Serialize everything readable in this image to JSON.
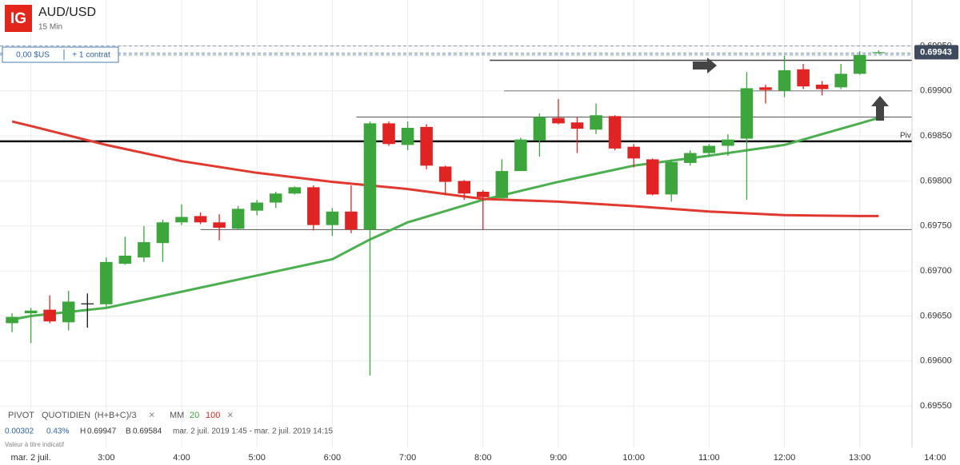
{
  "header": {
    "logo": "IG",
    "symbol": "AUD/USD",
    "interval": "15 Min"
  },
  "position": {
    "pnl": "0,00 $US",
    "size": "+ 1 contrat"
  },
  "legend": {
    "pivot": "PIVOT",
    "pivot_period": "QUOTIDIEN",
    "pivot_formula": "(H+B+C)/3",
    "close": "×",
    "ma": "MM",
    "ma_fast": "20",
    "ma_slow": "100",
    "ma_close": "×"
  },
  "stats": {
    "change": "0.00302",
    "change_pct": "0.43%",
    "high_label": "H",
    "high": "0.69947",
    "low_label": "B",
    "low": "0.69584",
    "range": "mar. 2 juil. 2019 1:45 - mar. 2 juil. 2019 14:15",
    "note": "Valeur à titre indicatif"
  },
  "chart_data": {
    "type": "candlestick",
    "xlim": [
      1.59,
      14.33
    ],
    "xticks": [
      {
        "value": 2,
        "label": "mar. 2 juil."
      },
      {
        "value": 3,
        "label": "3:00"
      },
      {
        "value": 4,
        "label": "4:00"
      },
      {
        "value": 5,
        "label": "5:00"
      },
      {
        "value": 6,
        "label": "6:00"
      },
      {
        "value": 7,
        "label": "7:00"
      },
      {
        "value": 8,
        "label": "8:00"
      },
      {
        "value": 9,
        "label": "9:00"
      },
      {
        "value": 10,
        "label": "10:00"
      },
      {
        "value": 11,
        "label": "11:00"
      },
      {
        "value": 12,
        "label": "12:00"
      },
      {
        "value": 13,
        "label": "13:00"
      },
      {
        "value": 14,
        "label": "14:00"
      }
    ],
    "ylim": [
      0.69504,
      0.70001
    ],
    "yticks": [
      {
        "value": 0.6955,
        "label": "0.69550"
      },
      {
        "value": 0.696,
        "label": "0.69600"
      },
      {
        "value": 0.6965,
        "label": "0.69650"
      },
      {
        "value": 0.697,
        "label": "0.69700"
      },
      {
        "value": 0.6975,
        "label": "0.69750"
      },
      {
        "value": 0.698,
        "label": "0.69800"
      },
      {
        "value": 0.6985,
        "label": "0.69850"
      },
      {
        "value": 0.699,
        "label": "0.69900"
      },
      {
        "value": 0.6995,
        "label": "0.69950"
      }
    ],
    "grid": true,
    "colors": {
      "up": "#3ca63c",
      "down": "#e02424",
      "flat": "#111111"
    },
    "x": [
      1.75,
      2,
      2.25,
      2.5,
      2.75,
      3,
      3.25,
      3.5,
      3.75,
      4,
      4.25,
      4.5,
      4.75,
      5,
      5.25,
      5.5,
      5.75,
      6,
      6.25,
      6.5,
      6.75,
      7,
      7.25,
      7.5,
      7.75,
      8,
      8.25,
      8.5,
      8.75,
      9,
      9.25,
      9.5,
      9.75,
      10,
      10.25,
      10.5,
      10.75,
      11,
      11.25,
      11.5,
      11.75,
      12,
      12.25,
      12.5,
      12.75,
      13,
      13.25
    ],
    "open": [
      0.69642,
      0.69653,
      0.69657,
      0.69643,
      0.69664,
      0.69663,
      0.69708,
      0.69715,
      0.69731,
      0.69754,
      0.69761,
      0.69754,
      0.69747,
      0.69767,
      0.69776,
      0.69786,
      0.69793,
      0.69751,
      0.69766,
      0.69746,
      0.69864,
      0.6984,
      0.6986,
      0.69816,
      0.698,
      0.69788,
      0.69781,
      0.69811,
      0.69845,
      0.6987,
      0.69865,
      0.69857,
      0.69872,
      0.69838,
      0.69824,
      0.69785,
      0.6982,
      0.69831,
      0.69839,
      0.69847,
      0.69904,
      0.699,
      0.69924,
      0.69907,
      0.69904,
      0.69919,
      0.69942
    ],
    "high": [
      0.69653,
      0.69659,
      0.69673,
      0.69678,
      0.69675,
      0.69715,
      0.69738,
      0.6975,
      0.69757,
      0.69774,
      0.69765,
      0.69763,
      0.69772,
      0.69779,
      0.69788,
      0.69794,
      0.69795,
      0.6977,
      0.69795,
      0.69866,
      0.69866,
      0.69866,
      0.69863,
      0.69817,
      0.69801,
      0.6979,
      0.69824,
      0.69848,
      0.69875,
      0.69891,
      0.69871,
      0.69886,
      0.69873,
      0.69841,
      0.69825,
      0.69824,
      0.69834,
      0.69841,
      0.69852,
      0.69921,
      0.69907,
      0.69939,
      0.6993,
      0.69911,
      0.6993,
      0.69944,
      0.69945
    ],
    "low": [
      0.69632,
      0.6962,
      0.69642,
      0.69634,
      0.69637,
      0.6966,
      0.69707,
      0.6971,
      0.6971,
      0.69751,
      0.69752,
      0.69734,
      0.69746,
      0.69762,
      0.6977,
      0.69785,
      0.69745,
      0.69739,
      0.69742,
      0.69584,
      0.69839,
      0.69834,
      0.69813,
      0.69784,
      0.69779,
      0.69746,
      0.69779,
      0.69811,
      0.69827,
      0.69863,
      0.69831,
      0.69852,
      0.69834,
      0.69815,
      0.69784,
      0.69777,
      0.69817,
      0.69827,
      0.69828,
      0.69779,
      0.69886,
      0.69893,
      0.69902,
      0.69895,
      0.69902,
      0.69918,
      0.69941
    ],
    "close": [
      0.69649,
      0.69656,
      0.69644,
      0.69666,
      0.69664,
      0.6971,
      0.69717,
      0.69732,
      0.69754,
      0.6976,
      0.69754,
      0.69748,
      0.69769,
      0.69776,
      0.69786,
      0.69793,
      0.69751,
      0.69766,
      0.69746,
      0.69864,
      0.69841,
      0.69859,
      0.69817,
      0.69799,
      0.69786,
      0.69782,
      0.69811,
      0.69846,
      0.69871,
      0.69864,
      0.69858,
      0.69873,
      0.69836,
      0.69825,
      0.69785,
      0.69821,
      0.69831,
      0.69839,
      0.69846,
      0.69903,
      0.69901,
      0.69923,
      0.69905,
      0.69902,
      0.69919,
      0.6994,
      0.69943
    ],
    "ma": [
      {
        "color": "#4caf50",
        "x": [
          1.75,
          2,
          3,
          4,
          5,
          6,
          6.5,
          7,
          8,
          9,
          10,
          11,
          12,
          13,
          13.25
        ],
        "values": [
          0.69646,
          0.6965,
          0.69659,
          0.69677,
          0.69695,
          0.69713,
          0.69735,
          0.69754,
          0.69779,
          0.69799,
          0.69817,
          0.69828,
          0.6984,
          0.69864,
          0.6987
        ]
      },
      {
        "color": "#e03a30",
        "x": [
          1.75,
          2,
          3,
          4,
          5,
          6,
          7,
          8,
          9,
          10,
          11,
          12,
          13,
          13.25
        ],
        "values": [
          0.69866,
          0.69861,
          0.6984,
          0.69822,
          0.69809,
          0.69799,
          0.69791,
          0.6978,
          0.69777,
          0.69772,
          0.69766,
          0.69762,
          0.69761,
          0.69761
        ]
      }
    ],
    "levels": [
      {
        "value": 0.69844,
        "start": 1.59,
        "color": "#111111",
        "width": 2.5,
        "dash": false,
        "label": "Piv"
      },
      {
        "value": 0.69746,
        "start": 4.25,
        "color": "#555555",
        "width": 1,
        "dash": false
      },
      {
        "value": 0.69871,
        "start": 6.32,
        "color": "#555555",
        "width": 1,
        "dash": false
      },
      {
        "value": 0.699,
        "start": 8.28,
        "color": "#777777",
        "width": 1,
        "dash": false
      },
      {
        "value": 0.69934,
        "start": 8.09,
        "color": "#444444",
        "width": 1.5,
        "dash": false
      },
      {
        "value": 0.6995,
        "start": 1.59,
        "color": "#8a9ab0",
        "width": 1,
        "dash": true
      },
      {
        "value": 0.69942,
        "start": 1.59,
        "color": "#6f8fc0",
        "width": 1,
        "dash": true
      },
      {
        "value": 0.6994,
        "start": 1.59,
        "color": "#6f8fc0",
        "width": 1,
        "dash": true
      }
    ],
    "last_price": 0.69943
  }
}
